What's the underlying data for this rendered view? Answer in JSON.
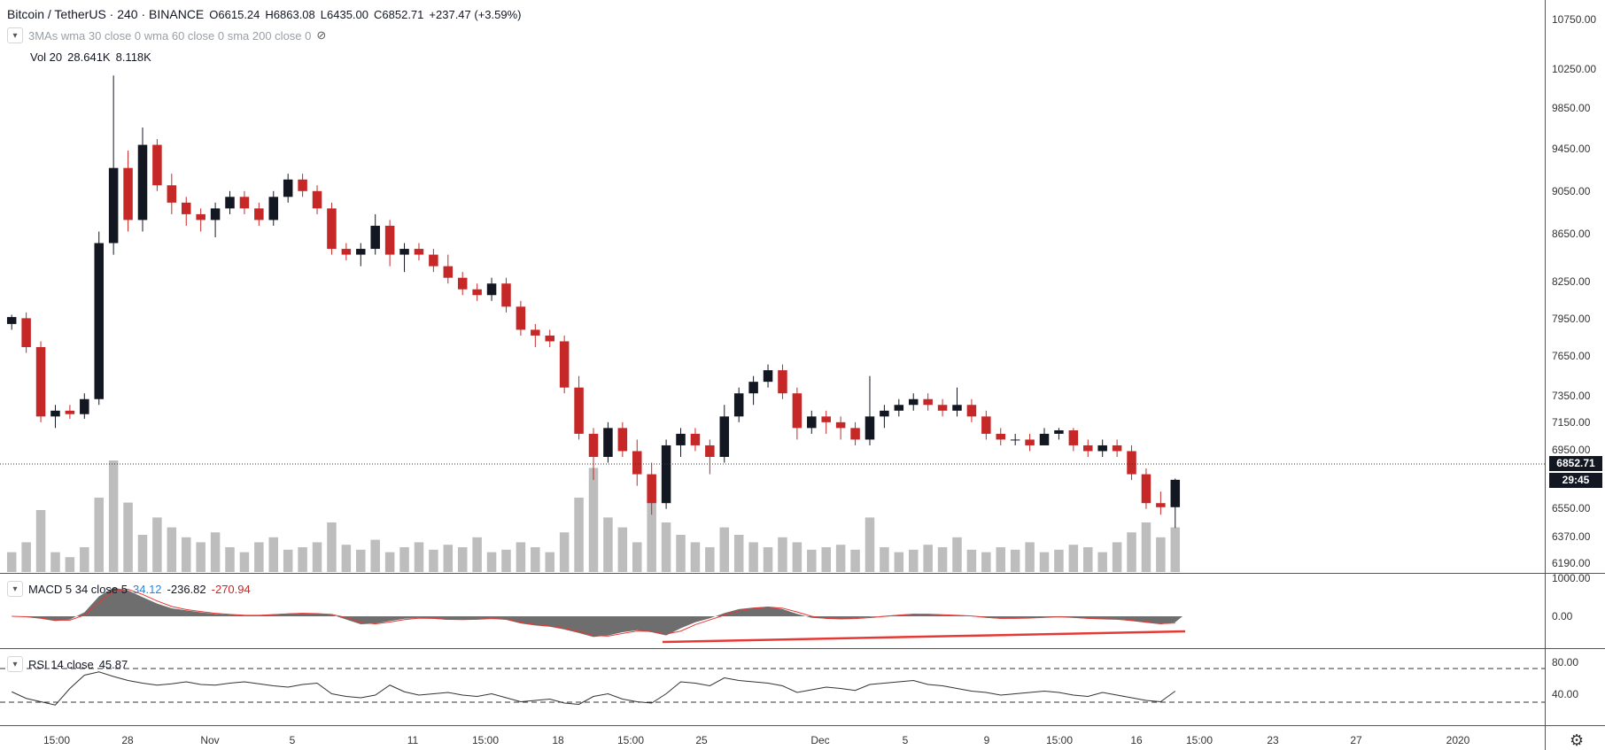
{
  "header": {
    "symbol": "Bitcoin / TetherUS · 240 · BINANCE",
    "o": "O6615.24",
    "h": "H6863.08",
    "l": "L6435.00",
    "c": "C6852.71",
    "change": "+237.47 (+3.59%)"
  },
  "indicators": {
    "mas": "3MAs wma 30 close 0 wma 60 close 0 sma 200 close 0",
    "vol_label": "Vol 20",
    "vol_value1": "28.641K",
    "vol_value2": "8.118K",
    "macd_label": "MACD 5 34 close 5",
    "macd_v1": "34.12",
    "macd_v2": "-236.82",
    "macd_v3": "-270.94",
    "rsi_label": "RSI 14 close",
    "rsi_value": "45.87"
  },
  "last_price": "6852.71",
  "countdown": "29:45",
  "icons": [
    "chevron-down-icon",
    "eye-slash-icon",
    "gear-icon"
  ],
  "colors": {
    "up": "#131722",
    "down": "#c62828",
    "volume": "#bdbdbd",
    "trendline": "#e53935"
  },
  "chart_data": [
    {
      "type": "candlestick",
      "series": [
        {
          "name": "BTCUSDT",
          "values": [
            [
              8200,
              8280,
              8150,
              8260
            ],
            [
              8250,
              8300,
              7950,
              8000
            ],
            [
              8000,
              8050,
              7350,
              7400
            ],
            [
              7400,
              7500,
              7300,
              7450
            ],
            [
              7450,
              7500,
              7380,
              7420
            ],
            [
              7420,
              7600,
              7380,
              7550
            ],
            [
              7550,
              9000,
              7500,
              8900
            ],
            [
              8900,
              10350,
              8800,
              9550
            ],
            [
              9550,
              9700,
              9000,
              9100
            ],
            [
              9100,
              9900,
              9000,
              9750
            ],
            [
              9750,
              9800,
              9350,
              9400
            ],
            [
              9400,
              9500,
              9150,
              9250
            ],
            [
              9250,
              9300,
              9050,
              9150
            ],
            [
              9150,
              9200,
              9000,
              9100
            ],
            [
              9100,
              9250,
              8950,
              9200
            ],
            [
              9200,
              9350,
              9150,
              9300
            ],
            [
              9300,
              9350,
              9150,
              9200
            ],
            [
              9200,
              9250,
              9050,
              9100
            ],
            [
              9100,
              9350,
              9050,
              9300
            ],
            [
              9300,
              9500,
              9250,
              9450
            ],
            [
              9450,
              9500,
              9300,
              9350
            ],
            [
              9350,
              9400,
              9150,
              9200
            ],
            [
              9200,
              9250,
              8800,
              8850
            ],
            [
              8850,
              8900,
              8750,
              8800
            ],
            [
              8800,
              8900,
              8700,
              8850
            ],
            [
              8850,
              9150,
              8800,
              9050
            ],
            [
              9050,
              9100,
              8700,
              8800
            ],
            [
              8800,
              8900,
              8650,
              8850
            ],
            [
              8850,
              8900,
              8750,
              8800
            ],
            [
              8800,
              8850,
              8650,
              8700
            ],
            [
              8700,
              8800,
              8550,
              8600
            ],
            [
              8600,
              8650,
              8450,
              8500
            ],
            [
              8500,
              8550,
              8400,
              8450
            ],
            [
              8450,
              8600,
              8400,
              8550
            ],
            [
              8550,
              8600,
              8300,
              8350
            ],
            [
              8350,
              8400,
              8100,
              8150
            ],
            [
              8150,
              8200,
              8000,
              8100
            ],
            [
              8100,
              8150,
              8000,
              8050
            ],
            [
              8050,
              8100,
              7600,
              7650
            ],
            [
              7650,
              7750,
              7200,
              7250
            ],
            [
              7250,
              7300,
              6850,
              7050
            ],
            [
              7050,
              7350,
              7000,
              7300
            ],
            [
              7300,
              7350,
              7050,
              7100
            ],
            [
              7100,
              7200,
              6800,
              6900
            ],
            [
              6900,
              7000,
              6550,
              6650
            ],
            [
              6650,
              7200,
              6600,
              7150
            ],
            [
              7150,
              7300,
              7050,
              7250
            ],
            [
              7250,
              7300,
              7100,
              7150
            ],
            [
              7150,
              7200,
              6900,
              7050
            ],
            [
              7050,
              7500,
              7000,
              7400
            ],
            [
              7400,
              7650,
              7350,
              7600
            ],
            [
              7600,
              7750,
              7500,
              7700
            ],
            [
              7700,
              7850,
              7650,
              7800
            ],
            [
              7800,
              7850,
              7550,
              7600
            ],
            [
              7600,
              7650,
              7200,
              7300
            ],
            [
              7300,
              7450,
              7250,
              7400
            ],
            [
              7400,
              7450,
              7250,
              7350
            ],
            [
              7350,
              7400,
              7200,
              7300
            ],
            [
              7300,
              7350,
              7150,
              7200
            ],
            [
              7200,
              7750,
              7150,
              7400
            ],
            [
              7400,
              7500,
              7300,
              7450
            ],
            [
              7450,
              7550,
              7400,
              7500
            ],
            [
              7500,
              7600,
              7450,
              7550
            ],
            [
              7550,
              7600,
              7450,
              7500
            ],
            [
              7500,
              7550,
              7400,
              7450
            ],
            [
              7450,
              7650,
              7400,
              7500
            ],
            [
              7500,
              7550,
              7350,
              7400
            ],
            [
              7400,
              7450,
              7200,
              7250
            ],
            [
              7250,
              7300,
              7150,
              7200
            ],
            [
              7200,
              7250,
              7150,
              7200
            ],
            [
              7200,
              7250,
              7100,
              7150
            ],
            [
              7150,
              7300,
              7150,
              7250
            ],
            [
              7250,
              7300,
              7200,
              7280
            ],
            [
              7280,
              7300,
              7100,
              7150
            ],
            [
              7150,
              7200,
              7050,
              7100
            ],
            [
              7100,
              7200,
              7050,
              7150
            ],
            [
              7150,
              7200,
              7050,
              7100
            ],
            [
              7100,
              7150,
              6850,
              6900
            ],
            [
              6900,
              6950,
              6600,
              6650
            ],
            [
              6650,
              6750,
              6550,
              6615
            ],
            [
              6615,
              6863,
              6435,
              6852
            ]
          ]
        }
      ],
      "xlabel": "",
      "ylabel": "",
      "ylim": [
        6100,
        10850
      ],
      "yticks": [
        "10750.00",
        "10250.00",
        "9850.00",
        "9450.00",
        "9050.00",
        "8650.00",
        "8250.00",
        "7950.00",
        "7650.00",
        "7350.00",
        "7150.00",
        "6950.00",
        "6550.00",
        "6370.00",
        "6190.00"
      ],
      "x_ticks": [
        "15:00",
        "28",
        "Nov",
        "5",
        "11",
        "15:00",
        "18",
        "15:00",
        "25",
        "Dec",
        "5",
        "9",
        "15:00",
        "16",
        "15:00",
        "23",
        "27",
        "2020"
      ]
    },
    {
      "type": "bar",
      "title": "Vol 20",
      "values": [
        8,
        12,
        25,
        8,
        6,
        10,
        30,
        45,
        28,
        15,
        22,
        18,
        14,
        12,
        16,
        10,
        8,
        12,
        14,
        9,
        10,
        12,
        20,
        11,
        9,
        13,
        8,
        10,
        12,
        9,
        11,
        10,
        14,
        8,
        9,
        12,
        10,
        8,
        16,
        30,
        42,
        22,
        18,
        12,
        35,
        20,
        15,
        12,
        10,
        18,
        15,
        12,
        10,
        14,
        12,
        9,
        10,
        11,
        9,
        22,
        10,
        8,
        9,
        11,
        10,
        14,
        9,
        8,
        10,
        9,
        12,
        8,
        9,
        11,
        10,
        8,
        12,
        16,
        20,
        14,
        18
      ]
    },
    {
      "type": "area",
      "title": "MACD 5 34 close 5",
      "ylim": [
        -500,
        1000
      ],
      "yticks": [
        "1000.00",
        "0.00"
      ],
      "values": [
        0,
        -20,
        -60,
        -120,
        -80,
        100,
        500,
        720,
        650,
        480,
        320,
        200,
        150,
        100,
        60,
        40,
        20,
        30,
        50,
        70,
        80,
        60,
        40,
        -80,
        -200,
        -180,
        -120,
        -60,
        -40,
        -60,
        -90,
        -80,
        -70,
        -50,
        -90,
        -180,
        -230,
        -260,
        -330,
        -420,
        -520,
        -480,
        -400,
        -350,
        -400,
        -480,
        -300,
        -150,
        -50,
        80,
        180,
        220,
        240,
        180,
        60,
        -40,
        -60,
        -70,
        -50,
        -20,
        10,
        40,
        60,
        50,
        30,
        20,
        0,
        -40,
        -60,
        -50,
        -40,
        -20,
        -10,
        -40,
        -60,
        -70,
        -80,
        -120,
        -160,
        -200,
        -150
      ]
    },
    {
      "type": "line",
      "title": "RSI 14 close",
      "ylim": [
        0,
        100
      ],
      "yticks": [
        "80.00",
        "40.00"
      ],
      "values": [
        45,
        35,
        30,
        25,
        50,
        70,
        75,
        68,
        62,
        58,
        55,
        57,
        60,
        56,
        55,
        58,
        60,
        57,
        54,
        52,
        56,
        58,
        42,
        38,
        36,
        40,
        55,
        45,
        40,
        42,
        44,
        40,
        38,
        42,
        36,
        30,
        32,
        34,
        28,
        26,
        38,
        42,
        34,
        30,
        28,
        42,
        60,
        58,
        54,
        66,
        62,
        60,
        58,
        54,
        44,
        48,
        52,
        50,
        47,
        56,
        58,
        60,
        62,
        56,
        54,
        50,
        46,
        44,
        40,
        42,
        44,
        46,
        44,
        40,
        38,
        44,
        40,
        36,
        32,
        30,
        46
      ]
    }
  ]
}
